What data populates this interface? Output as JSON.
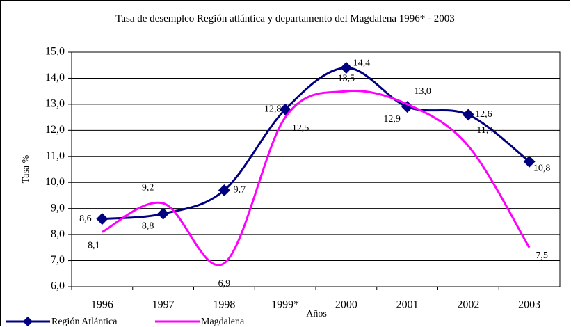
{
  "chart_data": {
    "type": "line",
    "title": "Tasa de desempleo Región atlántica y departamento del Magdalena 1996* - 2003",
    "x_label": "Años",
    "y_label": "Tasa %",
    "categories": [
      "1996",
      "1997",
      "1998",
      "1999*",
      "2000",
      "2001",
      "2002",
      "2003"
    ],
    "series": [
      {
        "name": "Región Atlántica",
        "color": "#000080",
        "values": [
          8.6,
          8.8,
          9.7,
          12.8,
          14.4,
          12.9,
          12.6,
          10.8
        ],
        "value_labels": [
          "8,6",
          "8,8",
          "9,7",
          "12,8",
          "14,4",
          "12,9",
          "12,6",
          "10,8"
        ]
      },
      {
        "name": "Magdalena",
        "color": "#ff00ff",
        "values": [
          8.1,
          9.2,
          6.9,
          12.5,
          13.5,
          13.0,
          11.4,
          7.5
        ],
        "value_labels": [
          "8,1",
          "9,2",
          "6,9",
          "12,5",
          "13,5",
          "13,0",
          "11,4",
          "7,5"
        ]
      }
    ],
    "ylim": [
      6,
      15
    ],
    "yticks": [
      {
        "value": 6,
        "label": "6,0"
      },
      {
        "value": 7,
        "label": "7,0"
      },
      {
        "value": 8,
        "label": "8,0"
      },
      {
        "value": 9,
        "label": "9,0"
      },
      {
        "value": 10,
        "label": "10,0"
      },
      {
        "value": 11,
        "label": "11,0"
      },
      {
        "value": 12,
        "label": "12,0"
      },
      {
        "value": 13,
        "label": "13,0"
      },
      {
        "value": 14,
        "label": "14,0"
      },
      {
        "value": 15,
        "label": "15,0"
      }
    ],
    "grid": true,
    "legend": "bottom-left"
  }
}
